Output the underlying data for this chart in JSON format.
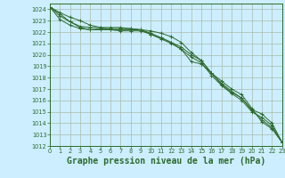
{
  "background_color": "#cceeff",
  "grid_color": "#aabbaa",
  "line_color": "#2d6a2d",
  "xlabel": "Graphe pression niveau de la mer (hPa)",
  "xlabel_fontsize": 7.0,
  "ylim": [
    1012,
    1024.5
  ],
  "xlim": [
    0,
    23
  ],
  "yticks": [
    1012,
    1013,
    1014,
    1015,
    1016,
    1017,
    1018,
    1019,
    1020,
    1021,
    1022,
    1023,
    1024
  ],
  "xticks": [
    0,
    1,
    2,
    3,
    4,
    5,
    6,
    7,
    8,
    9,
    10,
    11,
    12,
    13,
    14,
    15,
    16,
    17,
    18,
    19,
    20,
    21,
    22,
    23
  ],
  "series": [
    [
      1024.2,
      1023.7,
      1023.3,
      1023.0,
      1022.6,
      1022.4,
      1022.2,
      1022.1,
      1022.1,
      1022.1,
      1021.8,
      1021.5,
      1021.1,
      1020.5,
      1019.4,
      1019.2,
      1018.4,
      1017.7,
      1017.0,
      1016.5,
      1015.3,
      1014.1,
      1013.5,
      1012.3
    ],
    [
      1024.2,
      1023.4,
      1022.9,
      1022.4,
      1022.2,
      1022.2,
      1022.2,
      1022.2,
      1022.2,
      1022.2,
      1022.1,
      1021.9,
      1021.6,
      1021.1,
      1020.2,
      1019.5,
      1018.4,
      1017.5,
      1016.8,
      1016.2,
      1015.1,
      1014.3,
      1013.6,
      1012.3
    ],
    [
      1024.2,
      1023.1,
      1022.6,
      1022.3,
      1022.2,
      1022.3,
      1022.3,
      1022.3,
      1022.3,
      1022.2,
      1021.8,
      1021.4,
      1021.0,
      1020.5,
      1019.8,
      1019.3,
      1018.2,
      1017.3,
      1016.6,
      1016.0,
      1015.0,
      1014.5,
      1013.8,
      1012.3
    ],
    [
      1024.2,
      1023.6,
      1022.9,
      1022.5,
      1022.4,
      1022.4,
      1022.4,
      1022.4,
      1022.3,
      1022.2,
      1021.9,
      1021.5,
      1021.1,
      1020.7,
      1020.0,
      1019.5,
      1018.4,
      1017.4,
      1016.7,
      1016.2,
      1015.2,
      1014.8,
      1014.0,
      1012.3
    ]
  ]
}
